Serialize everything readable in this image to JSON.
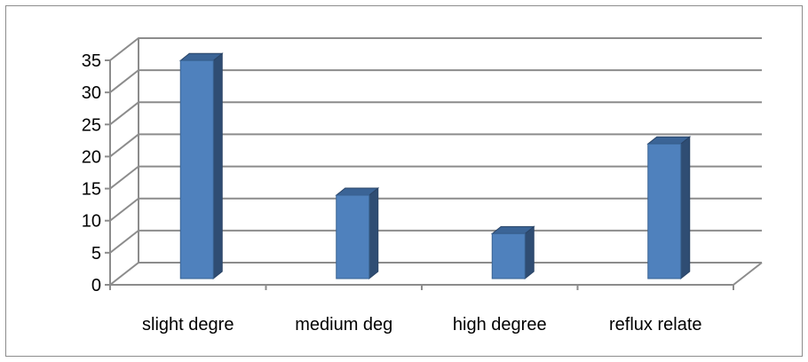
{
  "chart_data": {
    "type": "bar",
    "style": "3d-column",
    "categories": [
      "slight degre",
      "medium deg",
      "high degree",
      "reflux relate"
    ],
    "values": [
      34,
      13,
      7,
      21
    ],
    "ylim": [
      0,
      35
    ],
    "yticks": [
      0,
      5,
      10,
      15,
      20,
      25,
      30,
      35
    ],
    "ytick_labels": [
      "0",
      "5",
      "10",
      "15",
      "20",
      "25",
      "30",
      "35"
    ],
    "grid": true,
    "legend": "none",
    "colors": {
      "bar_front": "#4f81bd",
      "bar_side": "#2f4d73",
      "bar_top": "#3b6496",
      "grid": "#8c8c8c"
    }
  }
}
